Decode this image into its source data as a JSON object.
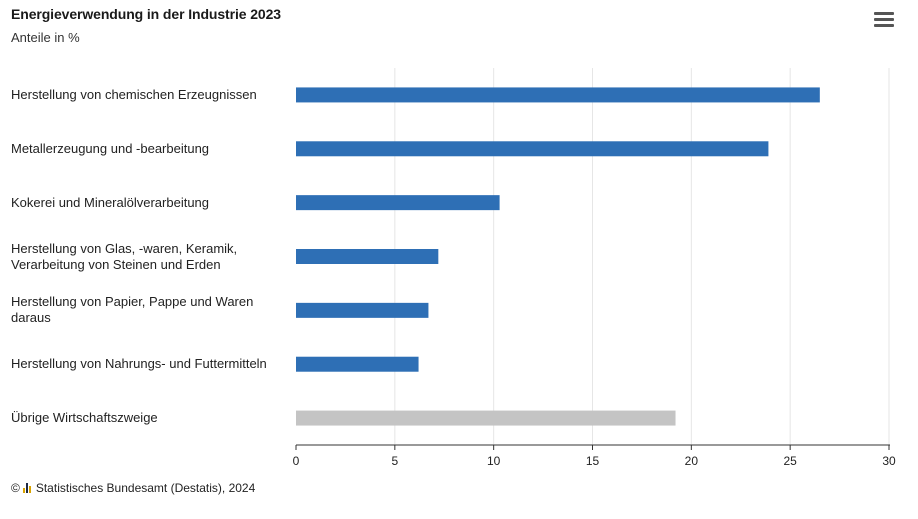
{
  "header": {
    "title": "Energieverwendung in der Industrie 2023",
    "subtitle": "Anteile in %",
    "menu_icon": "hamburger-menu-icon"
  },
  "footer": {
    "copyright_symbol": "©",
    "logo_icon": "destatis-logo-icon",
    "credits": "Statistisches Bundesamt (Destatis), 2024"
  },
  "colors": {
    "bar_primary": "#2e6fb5",
    "bar_other": "#c4c4c4",
    "grid": "#e6e6e6",
    "axis": "#333333"
  },
  "chart_data": {
    "type": "bar",
    "orientation": "horizontal",
    "title": "Energieverwendung in der Industrie 2023",
    "subtitle": "Anteile in %",
    "categories": [
      "Herstellung von chemischen Erzeugnissen",
      "Metallerzeugung und -bearbeitung",
      "Kokerei und Mineralölverarbeitung",
      "Herstellung von Glas, -waren, Keramik, Verarbeitung von Steinen und Erden",
      "Herstellung von Papier, Pappe und Waren daraus",
      "Herstellung von Nahrungs- und Futtermitteln",
      "Übrige Wirtschaftszweige"
    ],
    "values": [
      26.5,
      23.9,
      10.3,
      7.2,
      6.7,
      6.2,
      19.2
    ],
    "highlight": [
      true,
      true,
      true,
      true,
      true,
      true,
      false
    ],
    "xlim": [
      0,
      30
    ],
    "xticks": [
      0,
      5,
      10,
      15,
      20,
      25,
      30
    ],
    "grid": true,
    "legend": "none"
  }
}
